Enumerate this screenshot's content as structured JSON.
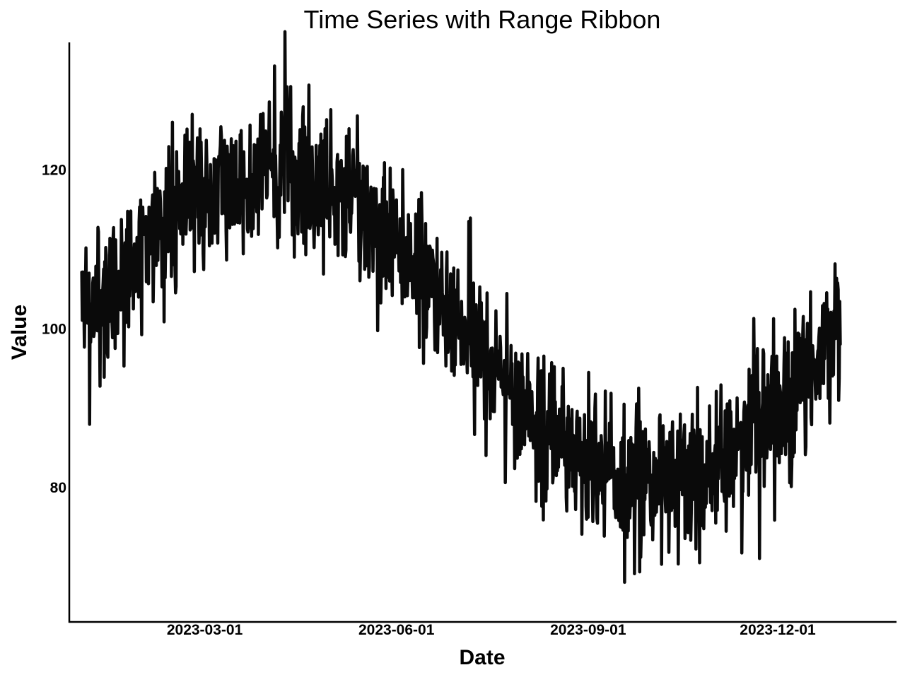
{
  "chart_data": {
    "type": "line",
    "title": "Time Series with Range Ribbon",
    "xlabel": "Date",
    "ylabel": "Value",
    "x_axis": {
      "type": "date",
      "range": [
        "2022-12-26",
        "2024-01-27"
      ],
      "ticks": [
        "2023-03-01",
        "2023-06-01",
        "2023-09-01",
        "2023-12-01"
      ]
    },
    "y_axis": {
      "range": [
        63,
        136
      ],
      "ticks": [
        80,
        100,
        120
      ]
    },
    "grid": false,
    "legend": "none",
    "colors": {
      "line": "#0a0a0a",
      "axis": "#000000",
      "background": "#ffffff"
    },
    "series": [
      {
        "x_start": "2023-01-01",
        "x_end": "2023-12-31",
        "frequency": "6H",
        "values": []
      }
    ]
  }
}
